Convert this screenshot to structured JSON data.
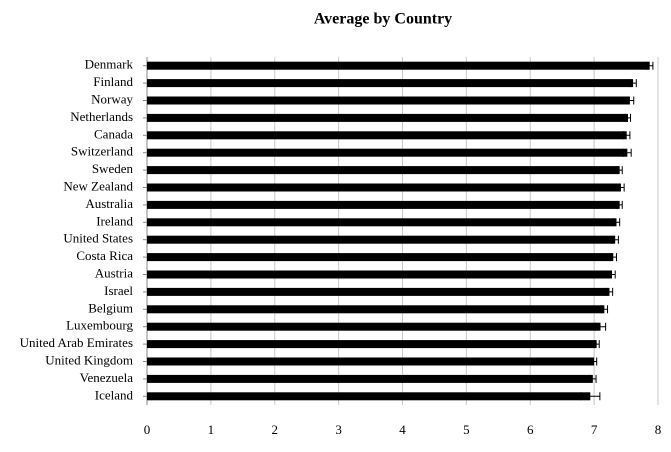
{
  "chart_data": {
    "type": "bar",
    "orientation": "horizontal",
    "title": "Average by Country",
    "categories": [
      "Denmark",
      "Finland",
      "Norway",
      "Netherlands",
      "Canada",
      "Switzerland",
      "Sweden",
      "New Zealand",
      "Australia",
      "Ireland",
      "United States",
      "Costa Rica",
      "Austria",
      "Israel",
      "Belgium",
      "Luxembourg",
      "United Arab Emirates",
      "United Kingdom",
      "Venezuela",
      "Iceland"
    ],
    "values": [
      7.87,
      7.61,
      7.56,
      7.53,
      7.51,
      7.52,
      7.4,
      7.42,
      7.4,
      7.35,
      7.33,
      7.3,
      7.28,
      7.24,
      7.16,
      7.1,
      7.04,
      7.0,
      6.98,
      6.94
    ],
    "errors": [
      0.05,
      0.05,
      0.06,
      0.04,
      0.05,
      0.06,
      0.04,
      0.05,
      0.04,
      0.05,
      0.05,
      0.05,
      0.05,
      0.05,
      0.05,
      0.08,
      0.04,
      0.04,
      0.05,
      0.15
    ],
    "color": "#000000",
    "xlim": [
      0,
      8
    ],
    "xticks": [
      0,
      1,
      2,
      3,
      4,
      5,
      6,
      7,
      8
    ],
    "grid": true
  }
}
